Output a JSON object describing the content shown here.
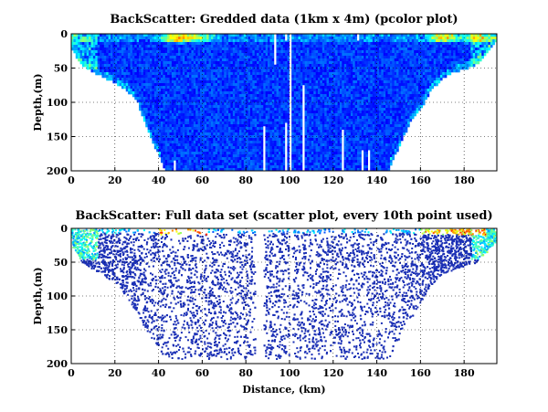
{
  "chart_data": [
    {
      "type": "heatmap",
      "title": "BackScatter: Gredded data (1km x 4m) (pcolor plot)",
      "xlabel": "",
      "ylabel": "Depth,(m)",
      "xlim": [
        0,
        195
      ],
      "ylim": [
        0,
        200
      ],
      "y_reversed": true,
      "xticks": [
        0,
        20,
        40,
        60,
        80,
        100,
        120,
        140,
        160,
        180
      ],
      "yticks": [
        0,
        50,
        100,
        150,
        200
      ],
      "grid": true,
      "bottom_profile": [
        [
          0,
          20
        ],
        [
          5,
          45
        ],
        [
          10,
          55
        ],
        [
          15,
          62
        ],
        [
          20,
          70
        ],
        [
          25,
          80
        ],
        [
          30,
          95
        ],
        [
          35,
          140
        ],
        [
          40,
          175
        ],
        [
          43,
          200
        ],
        [
          145,
          200
        ],
        [
          150,
          165
        ],
        [
          155,
          130
        ],
        [
          160,
          110
        ],
        [
          165,
          80
        ],
        [
          170,
          65
        ],
        [
          175,
          55
        ],
        [
          180,
          50
        ],
        [
          185,
          45
        ],
        [
          190,
          30
        ],
        [
          195,
          10
        ]
      ],
      "data_gaps": [
        {
          "x": 47,
          "y": [
            185,
            200
          ]
        },
        {
          "x": 88,
          "y": [
            135,
            200
          ]
        },
        {
          "x": 93,
          "y": [
            0,
            45
          ]
        },
        {
          "x": 98,
          "y": [
            0,
            10
          ]
        },
        {
          "x": 98,
          "y": [
            130,
            200
          ]
        },
        {
          "x": 100,
          "y": [
            0,
            200
          ]
        },
        {
          "x": 106,
          "y": [
            75,
            200
          ]
        },
        {
          "x": 124,
          "y": [
            140,
            200
          ]
        },
        {
          "x": 131,
          "y": [
            0,
            10
          ]
        },
        {
          "x": 133,
          "y": [
            170,
            200
          ]
        },
        {
          "x": 136,
          "y": [
            170,
            200
          ]
        }
      ],
      "hotspots": [
        {
          "x": 48,
          "y": 4,
          "level": "high"
        },
        {
          "x": 170,
          "y": 3,
          "level": "high"
        },
        {
          "x": 58,
          "y": 3,
          "level": "medium"
        },
        {
          "x": 185,
          "y": 5,
          "level": "medium"
        }
      ],
      "colormap": "jet",
      "background_color": "#1428b4"
    },
    {
      "type": "scatter",
      "title": "BackScatter: Full data set (scatter plot, every 10th point used)",
      "xlabel": "Distance, (km)",
      "ylabel": "Depth,(m)",
      "xlim": [
        0,
        195
      ],
      "ylim": [
        0,
        200
      ],
      "y_reversed": true,
      "xticks": [
        0,
        20,
        40,
        60,
        80,
        100,
        120,
        140,
        160,
        180
      ],
      "yticks": [
        0,
        50,
        100,
        150,
        200
      ],
      "grid": true,
      "bottom_profile": [
        [
          0,
          25
        ],
        [
          5,
          50
        ],
        [
          10,
          60
        ],
        [
          15,
          70
        ],
        [
          20,
          80
        ],
        [
          25,
          100
        ],
        [
          30,
          125
        ],
        [
          35,
          155
        ],
        [
          40,
          180
        ],
        [
          43,
          192
        ],
        [
          145,
          192
        ],
        [
          148,
          175
        ],
        [
          152,
          150
        ],
        [
          158,
          120
        ],
        [
          163,
          90
        ],
        [
          168,
          70
        ],
        [
          175,
          60
        ],
        [
          180,
          55
        ],
        [
          185,
          50
        ],
        [
          190,
          35
        ],
        [
          195,
          15
        ]
      ],
      "gaps_x": [
        [
          84,
          88
        ],
        [
          100,
          101
        ]
      ],
      "point_color": "#1a2fb5",
      "colormap": "jet"
    }
  ]
}
